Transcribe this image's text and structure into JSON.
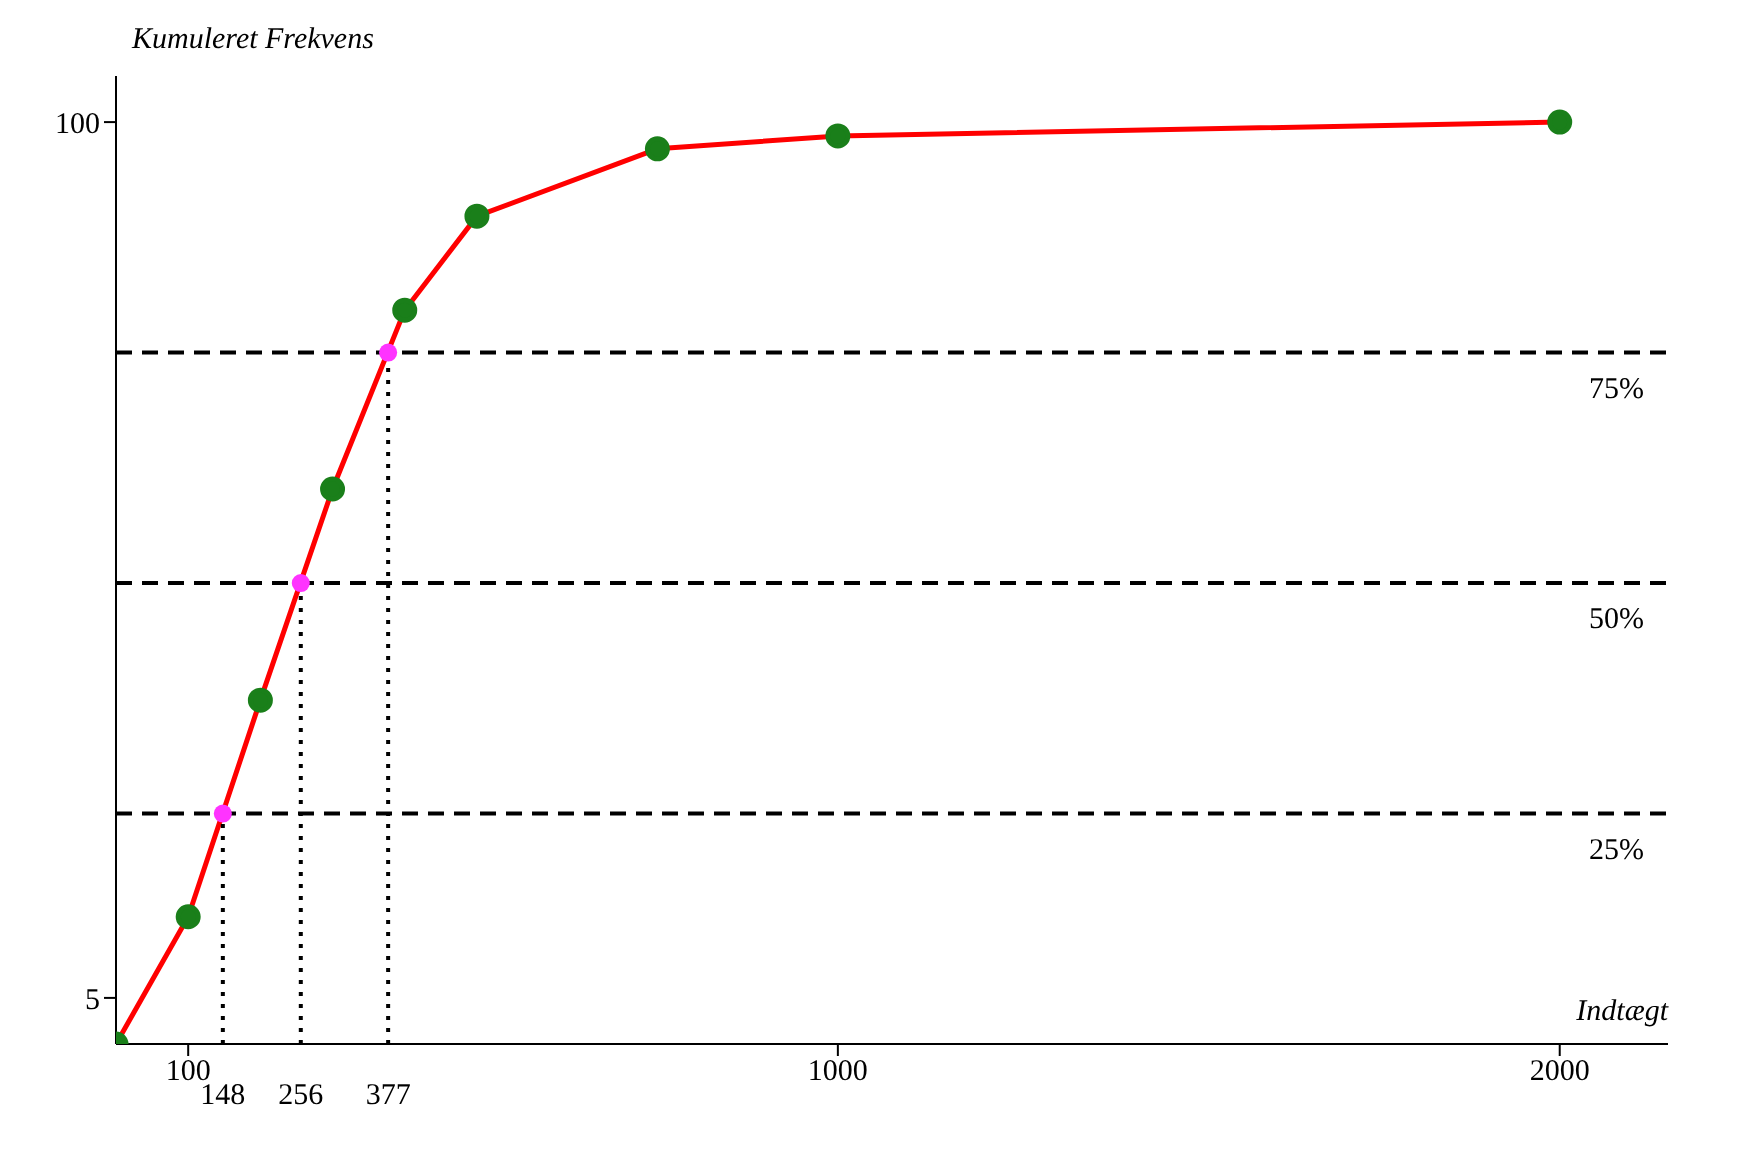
{
  "chart_data": {
    "type": "line",
    "xlabel": "Indtægt",
    "ylabel": "Kumuleret Frekvens",
    "xlim": [
      0,
      2150
    ],
    "ylim": [
      0,
      105
    ],
    "xticks": [
      100,
      1000,
      2000
    ],
    "yticks": [
      5,
      100
    ],
    "annotations": [
      {
        "text": "148",
        "x": 148,
        "y": 0
      },
      {
        "text": "256",
        "x": 256,
        "y": 0
      },
      {
        "text": "377",
        "x": 377,
        "y": 0
      }
    ],
    "series": [
      {
        "color": "#ff0000",
        "marker": "circle",
        "x": [
          0,
          100,
          200,
          300,
          400,
          500,
          750,
          1000,
          2000
        ],
        "values": [
          0,
          13.8,
          37.3,
          60.2,
          79.6,
          89.8,
          97.1,
          98.5,
          100
        ]
      },
      {
        "type": "scatter",
        "color": "#ff33ff",
        "marker": "circle",
        "x": [
          148,
          256,
          377
        ],
        "values": [
          25,
          50,
          75
        ]
      },
      {
        "type": "line",
        "color": "#000000",
        "marker": "none",
        "line_style": "dotted",
        "x": [
          148,
          148
        ],
        "values": [
          0,
          25
        ]
      },
      {
        "type": "line",
        "color": "#000000",
        "marker": "none",
        "line_style": "dotted",
        "x": [
          256,
          256
        ],
        "values": [
          0,
          50
        ]
      },
      {
        "type": "line",
        "color": "#000000",
        "marker": "none",
        "line_style": "dotted",
        "x": [
          377,
          377
        ],
        "values": [
          0,
          75
        ]
      }
    ],
    "ref_lines": [
      {
        "axis": "y",
        "value": 25,
        "label": "25%",
        "color": "#000000",
        "line_style": "dashed"
      },
      {
        "axis": "y",
        "value": 50,
        "label": "50%",
        "color": "#000000",
        "line_style": "dashed"
      },
      {
        "axis": "y",
        "value": 75,
        "label": "75%",
        "color": "#000000",
        "line_style": "dashed"
      }
    ]
  }
}
